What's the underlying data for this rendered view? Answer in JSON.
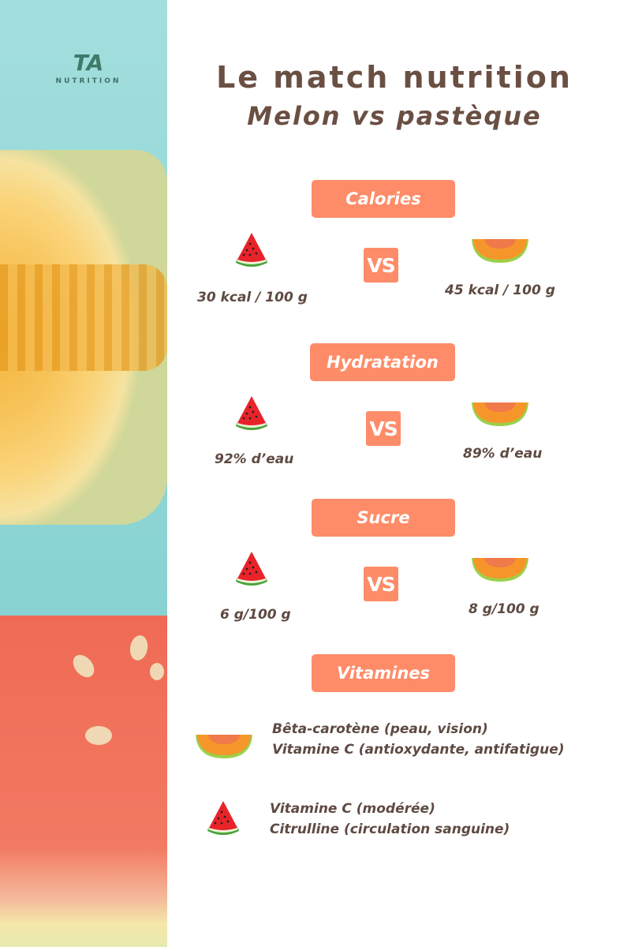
{
  "logo": {
    "mark": "TA",
    "text": "NUTRITION"
  },
  "title": {
    "line1": "Le match nutrition",
    "line2": "Melon vs pastèque"
  },
  "vs_label": "VS",
  "sections": [
    {
      "label": "Calories",
      "watermelon": "30 kcal / 100 g",
      "melon": "45 kcal / 100 g"
    },
    {
      "label": "Hydratation",
      "watermelon": "92% d’eau",
      "melon": "89% d’eau"
    },
    {
      "label": "Sucre",
      "watermelon": "6 g/100 g",
      "melon": "8 g/100 g"
    }
  ],
  "vitamins": {
    "label": "Vitamines",
    "melon": [
      "Bêta-carotène (peau, vision)",
      "Vitamine C (antioxydante, antifatigue)"
    ],
    "watermelon": [
      "Vitamine C (modérée)",
      "Citrulline (circulation sanguine)"
    ]
  },
  "icons": {
    "watermelon": "watermelon-slice-icon",
    "melon": "cantaloupe-slice-icon"
  },
  "colors": {
    "accent": "#fe8c68",
    "text": "#5e4a42",
    "strip": "#93d6d6"
  }
}
